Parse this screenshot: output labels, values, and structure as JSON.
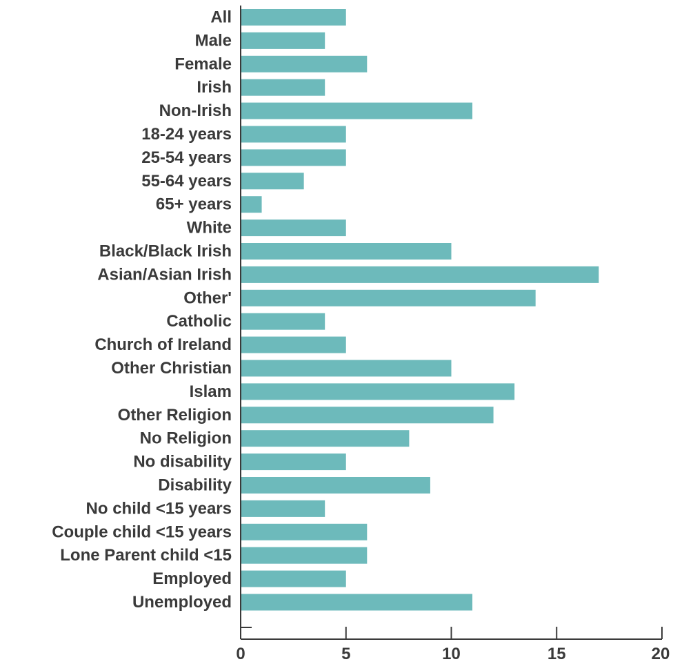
{
  "chart_data": {
    "type": "bar",
    "orientation": "horizontal",
    "title": "",
    "xlabel": "",
    "ylabel": "",
    "categories": [
      "All",
      "Male",
      "Female",
      "Irish",
      "Non-Irish",
      "18-24 years",
      "25-54 years",
      "55-64 years",
      "65+ years",
      "White",
      "Black/Black Irish",
      "Asian/Asian Irish",
      "Other'",
      "Catholic",
      "Church of Ireland",
      "Other Christian",
      "Islam",
      "Other Religion",
      "No Religion",
      "No disability",
      "Disability",
      "No child <15 years",
      "Couple child <15 years",
      "Lone Parent child <15",
      "Employed",
      "Unemployed"
    ],
    "values": [
      5,
      4,
      6,
      4,
      11,
      5,
      5,
      3,
      1,
      5,
      10,
      17,
      14,
      4,
      5,
      10,
      13,
      12,
      8,
      5,
      9,
      4,
      6,
      6,
      5,
      11
    ],
    "xlim": [
      0,
      20
    ],
    "xticks": [
      0,
      5,
      10,
      15,
      20
    ],
    "grid": false,
    "legend": "none",
    "bar_color": "#6dbabb",
    "axis_color": "#3a3a3a"
  }
}
